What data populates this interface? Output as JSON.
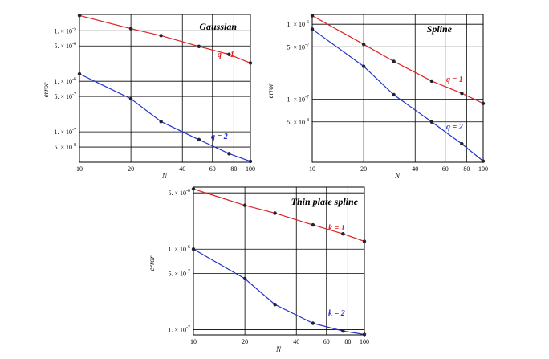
{
  "chart_data": [
    {
      "type": "line",
      "title": "Gaussian",
      "xlabel": "N",
      "ylabel": "error",
      "xscale": "log",
      "yscale": "log",
      "xlim": [
        10,
        100
      ],
      "ylim": [
        2.5e-08,
        2.1e-05
      ],
      "xticks": [
        10,
        20,
        40,
        60,
        80,
        100
      ],
      "xtick_labels": [
        "10",
        "20",
        "40",
        "60",
        "80",
        "100"
      ],
      "yticks": [
        1e-05,
        5e-06,
        1e-06,
        5e-07,
        1e-07,
        5e-08
      ],
      "ytick_labels": [
        {
          "mant": "1. × 10",
          "exp": "-5"
        },
        {
          "mant": "5. × 10",
          "exp": "-6"
        },
        {
          "mant": "1. × 10",
          "exp": "-6"
        },
        {
          "mant": "5. × 10",
          "exp": "-7"
        },
        {
          "mant": "1. × 10",
          "exp": "-7"
        },
        {
          "mant": "5. × 10",
          "exp": "-8"
        }
      ],
      "grid": true,
      "series": [
        {
          "name": "q = 1",
          "color": "#dd2222",
          "x": [
            10,
            20,
            30,
            50,
            75,
            100
          ],
          "y": [
            2e-05,
            1.1e-05,
            8e-06,
            4.9e-06,
            3.4e-06,
            2.3e-06
          ]
        },
        {
          "name": "q = 2",
          "color": "#2233cc",
          "x": [
            10,
            20,
            30,
            50,
            75,
            100
          ],
          "y": [
            1.4e-06,
            4.5e-07,
            1.6e-07,
            7e-08,
            3.7e-08,
            2.6e-08
          ]
        }
      ]
    },
    {
      "type": "line",
      "title": "Spline",
      "xlabel": "N",
      "ylabel": "error",
      "xscale": "log",
      "yscale": "log",
      "xlim": [
        10,
        100
      ],
      "ylim": [
        1.45e-08,
        1.35e-06
      ],
      "xticks": [
        10,
        20,
        40,
        60,
        80,
        100
      ],
      "xtick_labels": [
        "10",
        "20",
        "40",
        "60",
        "80",
        "100"
      ],
      "yticks": [
        1e-06,
        5e-07,
        1e-07,
        5e-08
      ],
      "ytick_labels": [
        {
          "mant": "1. × 10",
          "exp": "-6"
        },
        {
          "mant": "5. × 10",
          "exp": "-7"
        },
        {
          "mant": "1. × 10",
          "exp": "-7"
        },
        {
          "mant": "5. × 10",
          "exp": "-8"
        }
      ],
      "grid": true,
      "series": [
        {
          "name": "q = 1",
          "color": "#dd2222",
          "x": [
            10,
            20,
            30,
            50,
            75,
            100
          ],
          "y": [
            1.3e-06,
            5.4e-07,
            3.2e-07,
            1.75e-07,
            1.2e-07,
            8.8e-08
          ]
        },
        {
          "name": "q = 2",
          "color": "#2233cc",
          "x": [
            10,
            20,
            30,
            50,
            75,
            100
          ],
          "y": [
            8.6e-07,
            2.75e-07,
            1.15e-07,
            5e-08,
            2.55e-08,
            1.5e-08
          ]
        }
      ]
    },
    {
      "type": "line",
      "title": "Thin plate spline",
      "xlabel": "N",
      "ylabel": "error",
      "xscale": "log",
      "yscale": "log",
      "xlim": [
        10,
        100
      ],
      "ylim": [
        8.6e-08,
        5.9e-06
      ],
      "xticks": [
        10,
        20,
        40,
        60,
        80,
        100
      ],
      "xtick_labels": [
        "10",
        "20",
        "40",
        "60",
        "80",
        "100"
      ],
      "yticks": [
        5e-06,
        1e-06,
        5e-07,
        1e-07
      ],
      "ytick_labels": [
        {
          "mant": "5. × 10",
          "exp": "-6"
        },
        {
          "mant": "1. × 10",
          "exp": "-6"
        },
        {
          "mant": "5. × 10",
          "exp": "-7"
        },
        {
          "mant": "1. × 10",
          "exp": "-7"
        }
      ],
      "grid": true,
      "series": [
        {
          "name": "k = 1",
          "color": "#dd2222",
          "x": [
            10,
            20,
            30,
            50,
            75,
            100
          ],
          "y": [
            5.6e-06,
            3.5e-06,
            2.8e-06,
            2e-06,
            1.55e-06,
            1.25e-06
          ]
        },
        {
          "name": "k = 2",
          "color": "#2233cc",
          "x": [
            10,
            20,
            30,
            50,
            75,
            100
          ],
          "y": [
            1e-06,
            4.3e-07,
            2.05e-07,
            1.2e-07,
            9.6e-08,
            8.7e-08
          ]
        }
      ]
    }
  ]
}
